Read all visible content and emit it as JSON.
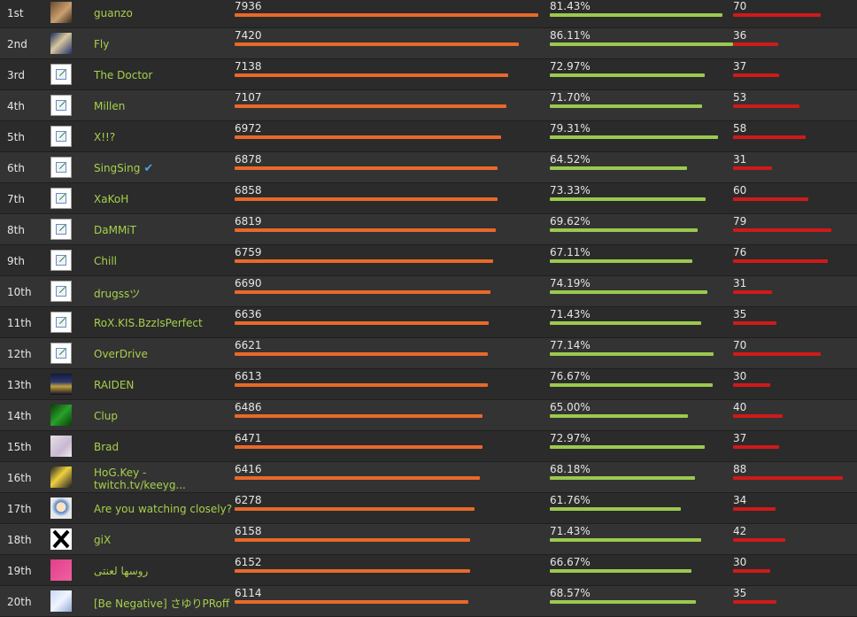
{
  "colors": {
    "points_bar": "#e8692a",
    "winrate_bar": "#9bc94f",
    "third_bar": "#cf1a1a",
    "name_text": "#a6d14a"
  },
  "rows": [
    {
      "rank": "1st",
      "name": "guanzo",
      "points": "7936",
      "winrate": "81.43%",
      "count": "70",
      "points_fill": 0.991,
      "winrate_fill": 0.8143,
      "count_fill": 0.795,
      "avatar": "photo-avatar"
    },
    {
      "rank": "2nd",
      "name": "Fly",
      "points": "7420",
      "winrate": "86.11%",
      "count": "36",
      "points_fill": 0.927,
      "winrate_fill": 0.8611,
      "count_fill": 0.409,
      "avatar": "photo-avatar"
    },
    {
      "rank": "3rd",
      "name": "The Doctor",
      "points": "7138",
      "winrate": "72.97%",
      "count": "37",
      "points_fill": 0.892,
      "winrate_fill": 0.7297,
      "count_fill": 0.42,
      "avatar": "broken-image-icon"
    },
    {
      "rank": "4th",
      "name": "Millen",
      "points": "7107",
      "winrate": "71.70%",
      "count": "53",
      "points_fill": 0.888,
      "winrate_fill": 0.717,
      "count_fill": 0.602,
      "avatar": "broken-image-icon"
    },
    {
      "rank": "5th",
      "name": "X!!?",
      "points": "6972",
      "winrate": "79.31%",
      "count": "58",
      "points_fill": 0.871,
      "winrate_fill": 0.7931,
      "count_fill": 0.659,
      "avatar": "broken-image-icon"
    },
    {
      "rank": "6th",
      "name": "SingSing",
      "points": "6878",
      "winrate": "64.52%",
      "count": "31",
      "points_fill": 0.859,
      "winrate_fill": 0.6452,
      "count_fill": 0.352,
      "avatar": "broken-image-icon",
      "verified": true
    },
    {
      "rank": "7th",
      "name": "XaKoH",
      "points": "6858",
      "winrate": "73.33%",
      "count": "60",
      "points_fill": 0.857,
      "winrate_fill": 0.7333,
      "count_fill": 0.682,
      "avatar": "broken-image-icon"
    },
    {
      "rank": "8th",
      "name": "DaMMiT",
      "points": "6819",
      "winrate": "69.62%",
      "count": "79",
      "points_fill": 0.852,
      "winrate_fill": 0.6962,
      "count_fill": 0.898,
      "avatar": "broken-image-icon"
    },
    {
      "rank": "9th",
      "name": "Chill",
      "points": "6759",
      "winrate": "67.11%",
      "count": "76",
      "points_fill": 0.844,
      "winrate_fill": 0.6711,
      "count_fill": 0.864,
      "avatar": "broken-image-icon"
    },
    {
      "rank": "10th",
      "name": "drugssツ",
      "points": "6690",
      "winrate": "74.19%",
      "count": "31",
      "points_fill": 0.836,
      "winrate_fill": 0.7419,
      "count_fill": 0.352,
      "avatar": "broken-image-icon"
    },
    {
      "rank": "11th",
      "name": "RoX.KIS.BzzIsPerfect",
      "points": "6636",
      "winrate": "71.43%",
      "count": "35",
      "points_fill": 0.829,
      "winrate_fill": 0.7143,
      "count_fill": 0.398,
      "avatar": "broken-image-icon"
    },
    {
      "rank": "12th",
      "name": "OverDrive",
      "points": "6621",
      "winrate": "77.14%",
      "count": "70",
      "points_fill": 0.827,
      "winrate_fill": 0.7714,
      "count_fill": 0.795,
      "avatar": "broken-image-icon"
    },
    {
      "rank": "13th",
      "name": "RAIDEN",
      "points": "6613",
      "winrate": "76.67%",
      "count": "30",
      "points_fill": 0.826,
      "winrate_fill": 0.7667,
      "count_fill": 0.341,
      "avatar": "photo-avatar"
    },
    {
      "rank": "14th",
      "name": "Clup",
      "points": "6486",
      "winrate": "65.00%",
      "count": "40",
      "points_fill": 0.81,
      "winrate_fill": 0.65,
      "count_fill": 0.455,
      "avatar": "photo-avatar"
    },
    {
      "rank": "15th",
      "name": "Brad",
      "points": "6471",
      "winrate": "72.97%",
      "count": "37",
      "points_fill": 0.808,
      "winrate_fill": 0.7297,
      "count_fill": 0.42,
      "avatar": "photo-avatar"
    },
    {
      "rank": "16th",
      "name": "HoG.Key - twitch.tv/keeyg...",
      "points": "6416",
      "winrate": "68.18%",
      "count": "88",
      "points_fill": 0.801,
      "winrate_fill": 0.6818,
      "count_fill": 1.0,
      "avatar": "photo-avatar",
      "two_line": true
    },
    {
      "rank": "17th",
      "name": "Are you watching closely?",
      "points": "6278",
      "winrate": "61.76%",
      "count": "34",
      "points_fill": 0.784,
      "winrate_fill": 0.6176,
      "count_fill": 0.386,
      "avatar": "photo-avatar"
    },
    {
      "rank": "18th",
      "name": "giX",
      "points": "6158",
      "winrate": "71.43%",
      "count": "42",
      "points_fill": 0.769,
      "winrate_fill": 0.7143,
      "count_fill": 0.477,
      "avatar": "photo-avatar"
    },
    {
      "rank": "19th",
      "name": "روسها لعنتى",
      "points": "6152",
      "winrate": "66.67%",
      "count": "30",
      "points_fill": 0.768,
      "winrate_fill": 0.6667,
      "count_fill": 0.341,
      "avatar": "photo-avatar"
    },
    {
      "rank": "20th",
      "name": "[Be Negative] さゆりPRoff",
      "points": "6114",
      "winrate": "68.57%",
      "count": "35",
      "points_fill": 0.764,
      "winrate_fill": 0.6857,
      "count_fill": 0.398,
      "avatar": "photo-avatar"
    }
  ]
}
